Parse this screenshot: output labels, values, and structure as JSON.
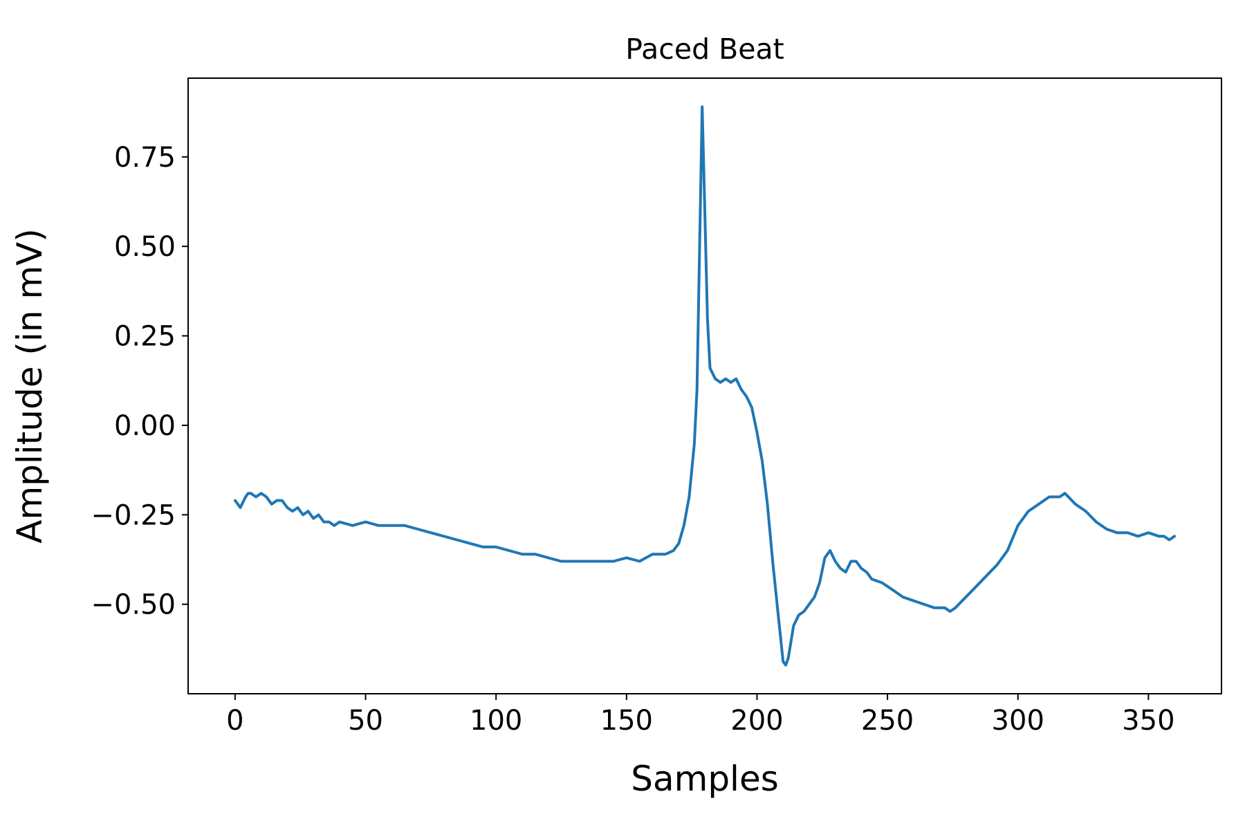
{
  "chart_data": {
    "type": "line",
    "title": "Paced Beat",
    "xlabel": "Samples",
    "ylabel": "Amplitude (in mV)",
    "xlim": [
      -18,
      378
    ],
    "ylim": [
      -0.75,
      0.97
    ],
    "xticks": [
      0,
      50,
      100,
      150,
      200,
      250,
      300,
      350
    ],
    "xtick_labels": [
      "0",
      "50",
      "100",
      "150",
      "200",
      "250",
      "300",
      "350"
    ],
    "yticks": [
      0.75,
      0.5,
      0.25,
      0.0,
      -0.25,
      -0.5
    ],
    "ytick_labels": [
      "0.75",
      "0.50",
      "0.25",
      "0.00",
      "−0.25",
      "−0.50"
    ],
    "grid": false,
    "series": [
      {
        "color": "#1f77b4",
        "x": [
          0,
          2,
          4,
          5,
          6,
          8,
          10,
          12,
          14,
          16,
          18,
          20,
          22,
          24,
          26,
          28,
          30,
          32,
          34,
          36,
          38,
          40,
          45,
          50,
          55,
          60,
          65,
          70,
          75,
          80,
          85,
          90,
          95,
          100,
          105,
          110,
          115,
          120,
          125,
          130,
          135,
          140,
          145,
          150,
          155,
          160,
          165,
          168,
          170,
          172,
          174,
          176,
          177,
          178,
          179,
          180,
          181,
          182,
          184,
          186,
          188,
          190,
          192,
          194,
          196,
          198,
          200,
          202,
          204,
          206,
          208,
          210,
          211,
          212,
          214,
          216,
          218,
          220,
          222,
          224,
          226,
          228,
          230,
          232,
          234,
          236,
          238,
          240,
          242,
          244,
          248,
          252,
          256,
          260,
          264,
          268,
          272,
          274,
          276,
          280,
          284,
          288,
          292,
          296,
          300,
          304,
          308,
          312,
          316,
          318,
          322,
          326,
          330,
          334,
          338,
          342,
          346,
          350,
          354,
          356,
          358,
          360
        ],
        "y": [
          -0.21,
          -0.23,
          -0.2,
          -0.19,
          -0.19,
          -0.2,
          -0.19,
          -0.2,
          -0.22,
          -0.21,
          -0.21,
          -0.23,
          -0.24,
          -0.23,
          -0.25,
          -0.24,
          -0.26,
          -0.25,
          -0.27,
          -0.27,
          -0.28,
          -0.27,
          -0.28,
          -0.27,
          -0.28,
          -0.28,
          -0.28,
          -0.29,
          -0.3,
          -0.31,
          -0.32,
          -0.33,
          -0.34,
          -0.34,
          -0.35,
          -0.36,
          -0.36,
          -0.37,
          -0.38,
          -0.38,
          -0.38,
          -0.38,
          -0.38,
          -0.37,
          -0.38,
          -0.36,
          -0.36,
          -0.35,
          -0.33,
          -0.28,
          -0.2,
          -0.05,
          0.1,
          0.5,
          0.89,
          0.6,
          0.3,
          0.16,
          0.13,
          0.12,
          0.13,
          0.12,
          0.13,
          0.1,
          0.08,
          0.05,
          -0.02,
          -0.1,
          -0.22,
          -0.38,
          -0.52,
          -0.66,
          -0.67,
          -0.65,
          -0.56,
          -0.53,
          -0.52,
          -0.5,
          -0.48,
          -0.44,
          -0.37,
          -0.35,
          -0.38,
          -0.4,
          -0.41,
          -0.38,
          -0.38,
          -0.4,
          -0.41,
          -0.43,
          -0.44,
          -0.46,
          -0.48,
          -0.49,
          -0.5,
          -0.51,
          -0.51,
          -0.52,
          -0.51,
          -0.48,
          -0.45,
          -0.42,
          -0.39,
          -0.35,
          -0.28,
          -0.24,
          -0.22,
          -0.2,
          -0.2,
          -0.19,
          -0.22,
          -0.24,
          -0.27,
          -0.29,
          -0.3,
          -0.3,
          -0.31,
          -0.3,
          -0.31,
          -0.31,
          -0.32,
          -0.31
        ]
      }
    ]
  }
}
